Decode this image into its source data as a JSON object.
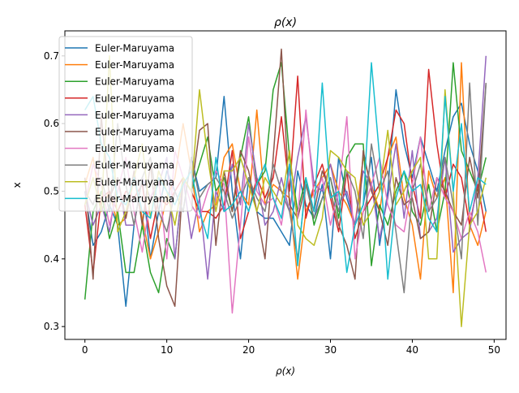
{
  "chart_data": {
    "type": "line",
    "title": "ρ(x)",
    "xlabel": "ρ(x)",
    "ylabel": "x",
    "xlim": [
      -2.45,
      51.45
    ],
    "ylim": [
      0.281,
      0.737
    ],
    "xticks": [
      0,
      10,
      20,
      30,
      40,
      50
    ],
    "yticks": [
      0.3,
      0.4,
      0.5,
      0.6,
      0.7
    ],
    "grid": false,
    "legend_position": "upper-left",
    "colors": [
      "#1f77b4",
      "#ff7f0e",
      "#2ca02c",
      "#d62728",
      "#9467bd",
      "#8c564b",
      "#e377c2",
      "#7f7f7f",
      "#bcbd22",
      "#17becf"
    ],
    "x": [
      0,
      1,
      2,
      3,
      4,
      5,
      6,
      7,
      8,
      9,
      10,
      11,
      12,
      13,
      14,
      15,
      16,
      17,
      18,
      19,
      20,
      21,
      22,
      23,
      24,
      25,
      26,
      27,
      28,
      29,
      30,
      31,
      32,
      33,
      34,
      35,
      36,
      37,
      38,
      39,
      40,
      41,
      42,
      43,
      44,
      45,
      46,
      47,
      48,
      49
    ],
    "series": [
      {
        "name": "Euler-Maruyama",
        "values": [
          0.5,
          0.42,
          0.44,
          0.48,
          0.45,
          0.33,
          0.45,
          0.52,
          0.4,
          0.47,
          0.53,
          0.5,
          0.47,
          0.55,
          0.5,
          0.51,
          0.52,
          0.64,
          0.5,
          0.4,
          0.52,
          0.47,
          0.46,
          0.46,
          0.44,
          0.42,
          0.53,
          0.48,
          0.46,
          0.51,
          0.4,
          0.55,
          0.49,
          0.45,
          0.48,
          0.55,
          0.42,
          0.5,
          0.65,
          0.57,
          0.52,
          0.58,
          0.54,
          0.5,
          0.56,
          0.61,
          0.63,
          0.57,
          0.53,
          0.47
        ]
      },
      {
        "name": "Euler-Maruyama",
        "values": [
          0.51,
          0.55,
          0.47,
          0.5,
          0.45,
          0.46,
          0.52,
          0.46,
          0.4,
          0.44,
          0.49,
          0.52,
          0.6,
          0.53,
          0.44,
          0.47,
          0.48,
          0.55,
          0.57,
          0.5,
          0.48,
          0.62,
          0.48,
          0.51,
          0.5,
          0.49,
          0.37,
          0.47,
          0.5,
          0.52,
          0.54,
          0.5,
          0.48,
          0.45,
          0.55,
          0.51,
          0.47,
          0.55,
          0.58,
          0.49,
          0.45,
          0.37,
          0.53,
          0.49,
          0.52,
          0.35,
          0.69,
          0.45,
          0.42,
          0.47
        ]
      },
      {
        "name": "Euler-Maruyama",
        "values": [
          0.34,
          0.47,
          0.5,
          0.43,
          0.47,
          0.38,
          0.38,
          0.45,
          0.38,
          0.35,
          0.43,
          0.4,
          0.52,
          0.5,
          0.54,
          0.58,
          0.5,
          0.52,
          0.47,
          0.55,
          0.61,
          0.51,
          0.53,
          0.65,
          0.69,
          0.55,
          0.47,
          0.52,
          0.45,
          0.49,
          0.52,
          0.46,
          0.55,
          0.57,
          0.57,
          0.39,
          0.48,
          0.45,
          0.5,
          0.53,
          0.47,
          0.45,
          0.51,
          0.44,
          0.5,
          0.69,
          0.56,
          0.53,
          0.5,
          0.55
        ]
      },
      {
        "name": "Euler-Maruyama",
        "values": [
          0.48,
          0.38,
          0.49,
          0.5,
          0.47,
          0.5,
          0.49,
          0.51,
          0.43,
          0.49,
          0.48,
          0.5,
          0.52,
          0.5,
          0.47,
          0.47,
          0.46,
          0.48,
          0.56,
          0.43,
          0.47,
          0.52,
          0.49,
          0.52,
          0.61,
          0.5,
          0.67,
          0.46,
          0.51,
          0.54,
          0.49,
          0.44,
          0.53,
          0.43,
          0.47,
          0.49,
          0.51,
          0.55,
          0.62,
          0.6,
          0.51,
          0.46,
          0.68,
          0.57,
          0.49,
          0.54,
          0.52,
          0.45,
          0.51,
          0.44
        ]
      },
      {
        "name": "Euler-Maruyama",
        "values": [
          0.5,
          0.45,
          0.48,
          0.44,
          0.52,
          0.45,
          0.45,
          0.52,
          0.49,
          0.51,
          0.55,
          0.4,
          0.52,
          0.43,
          0.49,
          0.37,
          0.5,
          0.47,
          0.54,
          0.48,
          0.6,
          0.52,
          0.45,
          0.47,
          0.52,
          0.47,
          0.55,
          0.61,
          0.51,
          0.5,
          0.54,
          0.48,
          0.5,
          0.45,
          0.53,
          0.51,
          0.43,
          0.49,
          0.57,
          0.46,
          0.56,
          0.43,
          0.44,
          0.46,
          0.55,
          0.41,
          0.43,
          0.44,
          0.52,
          0.7
        ]
      },
      {
        "name": "Euler-Maruyama",
        "values": [
          0.52,
          0.37,
          0.61,
          0.49,
          0.52,
          0.46,
          0.53,
          0.45,
          0.54,
          0.43,
          0.36,
          0.33,
          0.52,
          0.5,
          0.59,
          0.6,
          0.42,
          0.53,
          0.47,
          0.56,
          0.53,
          0.47,
          0.4,
          0.55,
          0.71,
          0.48,
          0.46,
          0.51,
          0.47,
          0.53,
          0.5,
          0.45,
          0.42,
          0.37,
          0.56,
          0.5,
          0.47,
          0.42,
          0.52,
          0.48,
          0.49,
          0.43,
          0.44,
          0.52,
          0.5,
          0.47,
          0.45,
          0.55,
          0.49,
          0.66
        ]
      },
      {
        "name": "Euler-Maruyama",
        "values": [
          0.48,
          0.54,
          0.51,
          0.45,
          0.5,
          0.55,
          0.47,
          0.41,
          0.49,
          0.52,
          0.4,
          0.56,
          0.52,
          0.48,
          0.46,
          0.5,
          0.53,
          0.51,
          0.32,
          0.45,
          0.58,
          0.5,
          0.48,
          0.49,
          0.45,
          0.53,
          0.46,
          0.62,
          0.49,
          0.52,
          0.45,
          0.5,
          0.61,
          0.4,
          0.47,
          0.51,
          0.55,
          0.48,
          0.45,
          0.44,
          0.51,
          0.58,
          0.47,
          0.52,
          0.49,
          0.47,
          0.43,
          0.47,
          0.44,
          0.38
        ]
      },
      {
        "name": "Euler-Maruyama",
        "values": [
          0.5,
          0.48,
          0.52,
          0.47,
          0.6,
          0.51,
          0.45,
          0.52,
          0.55,
          0.47,
          0.44,
          0.5,
          0.47,
          0.55,
          0.49,
          0.51,
          0.52,
          0.5,
          0.46,
          0.49,
          0.52,
          0.49,
          0.47,
          0.54,
          0.5,
          0.47,
          0.4,
          0.51,
          0.46,
          0.49,
          0.52,
          0.47,
          0.53,
          0.5,
          0.43,
          0.57,
          0.5,
          0.53,
          0.44,
          0.35,
          0.5,
          0.54,
          0.47,
          0.49,
          0.55,
          0.48,
          0.4,
          0.66,
          0.45,
          0.66
        ]
      },
      {
        "name": "Euler-Maruyama",
        "values": [
          0.48,
          0.52,
          0.47,
          0.7,
          0.44,
          0.47,
          0.52,
          0.57,
          0.46,
          0.53,
          0.5,
          0.45,
          0.52,
          0.5,
          0.65,
          0.55,
          0.47,
          0.53,
          0.53,
          0.55,
          0.51,
          0.47,
          0.52,
          0.5,
          0.48,
          0.56,
          0.45,
          0.43,
          0.42,
          0.46,
          0.56,
          0.55,
          0.53,
          0.52,
          0.45,
          0.47,
          0.5,
          0.59,
          0.48,
          0.5,
          0.53,
          0.55,
          0.4,
          0.4,
          0.65,
          0.5,
          0.3,
          0.45,
          0.47,
          0.52
        ]
      },
      {
        "name": "Euler-Maruyama",
        "values": [
          0.62,
          0.64,
          0.57,
          0.55,
          0.49,
          0.48,
          0.52,
          0.47,
          0.46,
          0.52,
          0.5,
          0.48,
          0.51,
          0.53,
          0.47,
          0.43,
          0.55,
          0.47,
          0.48,
          0.5,
          0.47,
          0.51,
          0.54,
          0.49,
          0.46,
          0.54,
          0.39,
          0.52,
          0.47,
          0.66,
          0.49,
          0.5,
          0.38,
          0.45,
          0.48,
          0.69,
          0.55,
          0.37,
          0.49,
          0.53,
          0.5,
          0.51,
          0.46,
          0.44,
          0.64,
          0.5,
          0.6,
          0.47,
          0.52,
          0.51
        ]
      }
    ]
  }
}
